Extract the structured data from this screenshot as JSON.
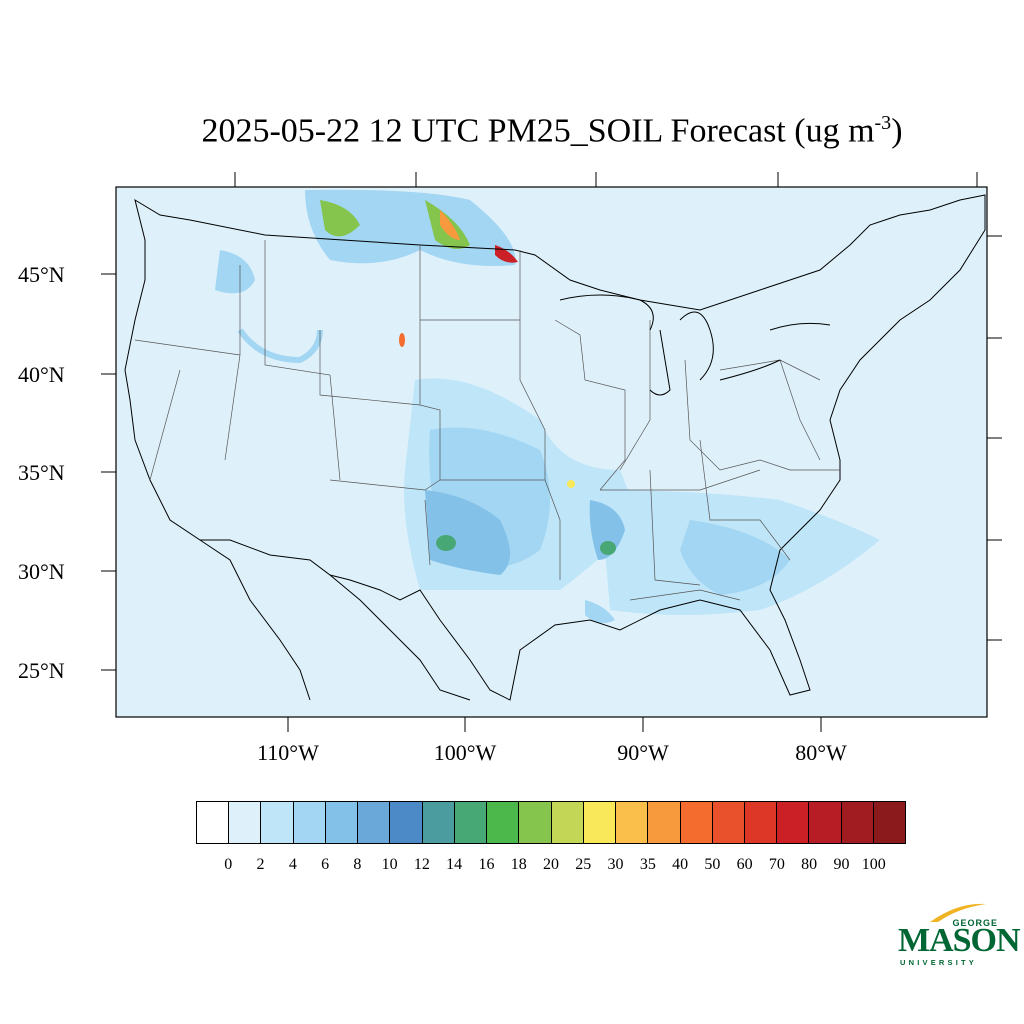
{
  "title": {
    "main": "2025-05-22 12 UTC PM25_SOIL Forecast (ug m",
    "exponent": "-3",
    "close": ")"
  },
  "map": {
    "region": "Contiguous United States",
    "variable": "PM25_SOIL",
    "units": "ug m-3",
    "lat_labels": [
      "45°N",
      "40°N",
      "35°N",
      "30°N",
      "25°N"
    ],
    "lon_labels": [
      "110°W",
      "100°W",
      "90°W",
      "80°W"
    ],
    "background_color": "#def1fb"
  },
  "colorbar": {
    "levels": [
      "0",
      "2",
      "4",
      "6",
      "8",
      "10",
      "12",
      "14",
      "16",
      "18",
      "20",
      "25",
      "30",
      "35",
      "40",
      "50",
      "60",
      "70",
      "80",
      "90",
      "100"
    ],
    "colors": [
      "#ffffff",
      "#def1fb",
      "#bfe5f8",
      "#a2d6f3",
      "#84c1e8",
      "#6aa8da",
      "#4b8ac6",
      "#4a9c9e",
      "#47a876",
      "#4cb84c",
      "#85c44d",
      "#c3d655",
      "#f8e85a",
      "#f9bf4a",
      "#f79a3d",
      "#f46d2e",
      "#e8512b",
      "#dd3727",
      "#cc2027",
      "#b61d24",
      "#a11c21",
      "#8b1a1c"
    ]
  },
  "logo": {
    "top": "GEORGE",
    "main": "MASON",
    "sub": "UNIVERSITY",
    "color": "#006633"
  }
}
